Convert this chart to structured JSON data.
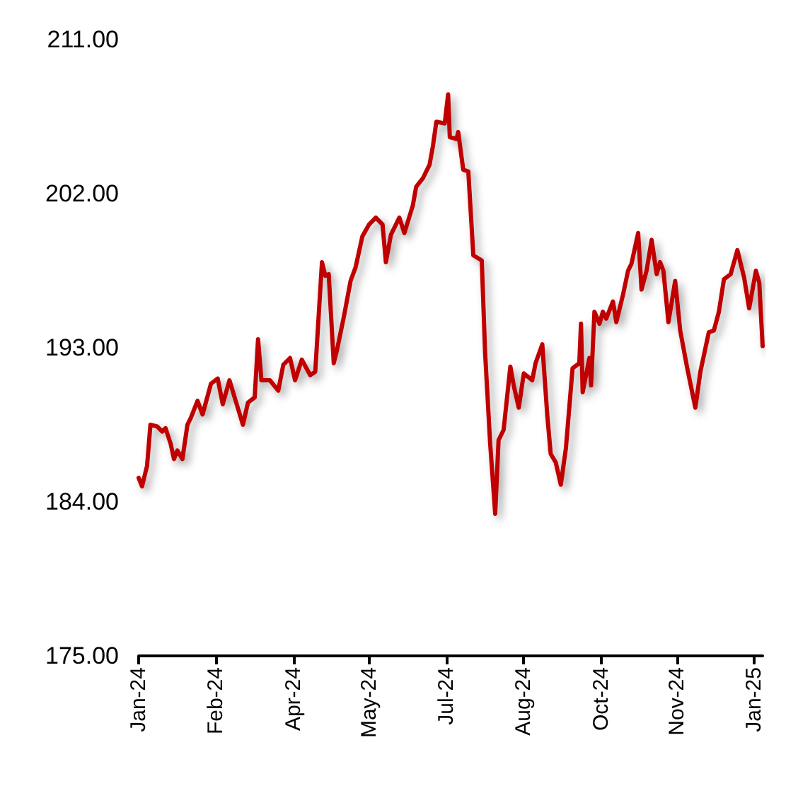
{
  "chart_data": {
    "type": "line",
    "x": [
      "2024-01-01",
      "2024-01-03",
      "2024-01-06",
      "2024-01-08",
      "2024-01-12",
      "2024-01-15",
      "2024-01-17",
      "2024-01-20",
      "2024-01-22",
      "2024-01-24",
      "2024-01-27",
      "2024-01-30",
      "2024-02-01",
      "2024-02-05",
      "2024-02-08",
      "2024-02-13",
      "2024-02-17",
      "2024-02-20",
      "2024-02-24",
      "2024-02-28",
      "2024-03-03",
      "2024-03-06",
      "2024-03-10",
      "2024-03-12",
      "2024-03-14",
      "2024-03-19",
      "2024-03-24",
      "2024-03-27",
      "2024-03-31",
      "2024-04-03",
      "2024-04-07",
      "2024-04-12",
      "2024-04-15",
      "2024-04-19",
      "2024-04-21",
      "2024-04-23",
      "2024-04-26",
      "2024-04-28",
      "2024-05-02",
      "2024-05-06",
      "2024-05-09",
      "2024-05-13",
      "2024-05-17",
      "2024-05-21",
      "2024-05-25",
      "2024-05-27",
      "2024-05-30",
      "2024-06-04",
      "2024-06-07",
      "2024-06-12",
      "2024-06-14",
      "2024-06-18",
      "2024-06-22",
      "2024-06-24",
      "2024-06-26",
      "2024-07-01",
      "2024-07-03",
      "2024-07-04",
      "2024-07-08",
      "2024-07-09",
      "2024-07-12",
      "2024-07-15",
      "2024-07-18",
      "2024-07-23",
      "2024-07-25",
      "2024-07-28",
      "2024-07-31",
      "2024-08-02",
      "2024-08-05",
      "2024-08-09",
      "2024-08-11",
      "2024-08-14",
      "2024-08-17",
      "2024-08-22",
      "2024-08-24",
      "2024-08-28",
      "2024-08-31",
      "2024-09-02",
      "2024-09-05",
      "2024-09-08",
      "2024-09-11",
      "2024-09-15",
      "2024-09-19",
      "2024-09-20",
      "2024-09-21",
      "2024-09-25",
      "2024-09-26",
      "2024-09-28",
      "2024-10-01",
      "2024-10-03",
      "2024-10-05",
      "2024-10-09",
      "2024-10-11",
      "2024-10-15",
      "2024-10-18",
      "2024-10-20",
      "2024-10-24",
      "2024-10-26",
      "2024-10-29",
      "2024-11-01",
      "2024-11-04",
      "2024-11-06",
      "2024-11-08",
      "2024-11-11",
      "2024-11-15",
      "2024-11-18",
      "2024-11-22",
      "2024-11-27",
      "2024-11-30",
      "2024-12-05",
      "2024-12-08",
      "2024-12-11",
      "2024-12-14",
      "2024-12-18",
      "2024-12-22",
      "2024-12-26",
      "2024-12-29",
      "2025-01-02",
      "2025-01-04",
      "2025-01-06"
    ],
    "series": [
      {
        "color": "#c00000",
        "values": [
          185.4,
          184.9,
          186.1,
          188.5,
          188.4,
          188.1,
          188.3,
          187.4,
          186.5,
          187.0,
          186.5,
          188.5,
          188.9,
          189.9,
          189.1,
          190.9,
          191.2,
          189.7,
          191.1,
          189.8,
          188.5,
          189.8,
          190.1,
          193.5,
          191.1,
          191.1,
          190.5,
          192.0,
          192.4,
          191.1,
          192.3,
          191.4,
          191.6,
          198.0,
          197.2,
          197.3,
          192.1,
          192.9,
          194.8,
          196.9,
          197.7,
          199.5,
          200.2,
          200.6,
          200.2,
          198.0,
          199.6,
          200.6,
          199.7,
          201.3,
          202.4,
          202.9,
          203.7,
          204.8,
          206.2,
          206.1,
          207.8,
          205.3,
          205.2,
          205.6,
          203.4,
          203.3,
          198.4,
          198.1,
          192.7,
          187.4,
          183.3,
          187.6,
          188.2,
          191.9,
          190.8,
          189.5,
          191.5,
          191.1,
          192.1,
          193.2,
          189.0,
          186.8,
          186.3,
          185.0,
          187.1,
          191.8,
          192.1,
          194.4,
          190.4,
          192.4,
          190.8,
          195.1,
          194.4,
          195.1,
          194.7,
          195.7,
          194.5,
          196.1,
          197.5,
          197.9,
          199.7,
          196.4,
          197.5,
          199.3,
          197.3,
          198.0,
          197.5,
          194.5,
          196.9,
          194.0,
          191.9,
          189.5,
          191.6,
          193.9,
          194.0,
          195.1,
          197.0,
          197.3,
          198.7,
          197.1,
          195.3,
          197.5,
          196.8,
          193.1
        ]
      }
    ],
    "xlim": [
      "2024-01-01",
      "2025-01-06"
    ],
    "xticks": [
      {
        "value": "2024-01-01",
        "label": "Jan-24"
      },
      {
        "value": "2024-02-16",
        "label": "Feb-24"
      },
      {
        "value": "2024-04-02",
        "label": "Apr-24"
      },
      {
        "value": "2024-05-17",
        "label": "May-24"
      },
      {
        "value": "2024-07-02",
        "label": "Jul-24"
      },
      {
        "value": "2024-08-17",
        "label": "Aug-24"
      },
      {
        "value": "2024-10-02",
        "label": "Oct-24"
      },
      {
        "value": "2024-11-16",
        "label": "Nov-24"
      },
      {
        "value": "2025-01-01",
        "label": "Jan-25"
      }
    ],
    "ylim": [
      175,
      211
    ],
    "yticks": [
      {
        "value": 175,
        "label": "175.00"
      },
      {
        "value": 184,
        "label": "184.00"
      },
      {
        "value": 193,
        "label": "193.00"
      },
      {
        "value": 202,
        "label": "202.00"
      },
      {
        "value": 211,
        "label": "211.00"
      }
    ],
    "marker": "none",
    "line_style": "solid"
  }
}
